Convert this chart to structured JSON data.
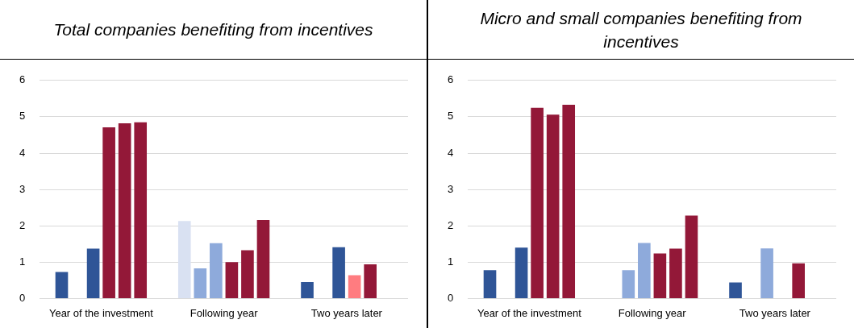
{
  "chart_data": [
    {
      "type": "bar",
      "title": "Total companies benefiting from incentives",
      "categories": [
        "Year of the investment",
        "Following year",
        "Two years later"
      ],
      "ylim": [
        0,
        6
      ],
      "yticks": [
        0,
        1,
        2,
        3,
        4,
        5,
        6
      ],
      "grid": "y",
      "legend": false,
      "series": [
        {
          "values": [
            0.73,
            2.13,
            0.45
          ],
          "colors": [
            "#2f5597",
            "#d9e1f2",
            "#2f5597"
          ]
        },
        {
          "values": [
            null,
            0.83,
            null
          ],
          "colors": [
            null,
            "#8eaadb",
            null
          ]
        },
        {
          "values": [
            1.37,
            1.52,
            1.41
          ],
          "colors": [
            "#2f5597",
            "#8eaadb",
            "#2f5597"
          ]
        },
        {
          "values": [
            4.71,
            1.0,
            0.64
          ],
          "colors": [
            "#931838",
            "#931838",
            "#ff7c80"
          ]
        },
        {
          "values": [
            4.82,
            1.33,
            0.94
          ],
          "colors": [
            "#931838",
            "#931838",
            "#931838"
          ]
        },
        {
          "values": [
            4.85,
            2.16,
            null
          ],
          "colors": [
            "#931838",
            "#931838",
            null
          ]
        }
      ]
    },
    {
      "type": "bar",
      "title": "Micro and small companies benefiting from incentives",
      "categories": [
        "Year of the investment",
        "Following year",
        "Two years later"
      ],
      "ylim": [
        0,
        6
      ],
      "yticks": [
        0,
        1,
        2,
        3,
        4,
        5,
        6
      ],
      "grid": "y",
      "legend": false,
      "series": [
        {
          "values": [
            0.78,
            null,
            0.44
          ],
          "colors": [
            "#2f5597",
            null,
            "#2f5597"
          ]
        },
        {
          "values": [
            null,
            0.78,
            null
          ],
          "colors": [
            null,
            "#8eaadb",
            null
          ]
        },
        {
          "values": [
            1.4,
            1.53,
            1.38
          ],
          "colors": [
            "#2f5597",
            "#8eaadb",
            "#8eaadb"
          ]
        },
        {
          "values": [
            5.25,
            1.24,
            null
          ],
          "colors": [
            "#931838",
            "#931838",
            null
          ]
        },
        {
          "values": [
            5.06,
            1.37,
            0.97
          ],
          "colors": [
            "#931838",
            "#931838",
            "#931838"
          ]
        },
        {
          "values": [
            5.33,
            2.28,
            null
          ],
          "colors": [
            "#931838",
            "#931838",
            null
          ]
        }
      ]
    }
  ]
}
